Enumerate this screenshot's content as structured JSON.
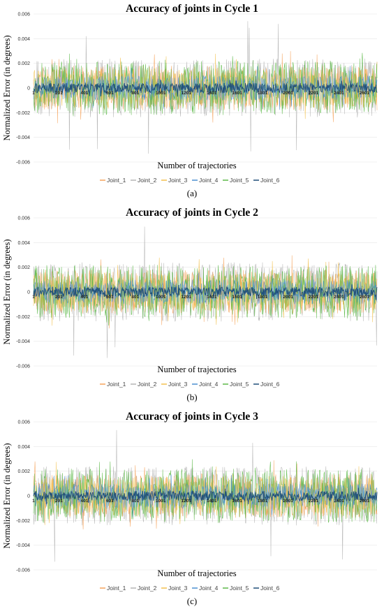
{
  "chart_data": [
    {
      "type": "line",
      "panel_label": "(a)",
      "title": "Accuracy of joints in Cycle 1",
      "xlabel": "Number of trajectories",
      "ylabel": "Normalized Error (in degrees)",
      "ylim": [
        -0.006,
        0.006
      ],
      "y_ticks": [
        "0.006",
        "0.004",
        "0.002",
        "0",
        "-0.002",
        "-0.004",
        "-0.006"
      ],
      "x_ticks": [
        "1",
        "201",
        "401",
        "601",
        "801",
        "1001",
        "1201",
        "1401",
        "1601",
        "1801",
        "2001",
        "2201",
        "2401",
        "2601"
      ],
      "x_range": [
        1,
        2700
      ],
      "series": [
        {
          "name": "Joint_1",
          "color": "#f5a35c",
          "typical_amplitude": 0.0018,
          "peak": 0.003
        },
        {
          "name": "Joint_2",
          "color": "#b4b4b4",
          "typical_amplitude": 0.0024,
          "peak": 0.0056
        },
        {
          "name": "Joint_3",
          "color": "#f2c14e",
          "typical_amplitude": 0.0016,
          "peak": 0.0028
        },
        {
          "name": "Joint_4",
          "color": "#4a8fd0",
          "typical_amplitude": 0.001,
          "peak": 0.0018
        },
        {
          "name": "Joint_5",
          "color": "#5cb848",
          "typical_amplitude": 0.0022,
          "peak": 0.003
        },
        {
          "name": "Joint_6",
          "color": "#1f4e79",
          "typical_amplitude": 0.0004,
          "peak": 0.0007
        }
      ]
    },
    {
      "type": "line",
      "panel_label": "(b)",
      "title": "Accuracy of joints in Cycle 2",
      "xlabel": "Number of trajectories",
      "ylabel": "Normalized Error (in degrees)",
      "ylim": [
        -0.006,
        0.006
      ],
      "y_ticks": [
        "0.006",
        "0.004",
        "0.002",
        "0",
        "-0.002",
        "-0.004",
        "-0.006"
      ],
      "x_ticks": [
        "1",
        "201",
        "401",
        "601",
        "801",
        "1001",
        "1201",
        "1401",
        "1601",
        "1801",
        "2001",
        "2201",
        "2401",
        "2601"
      ],
      "x_range": [
        1,
        2700
      ],
      "series": [
        {
          "name": "Joint_1",
          "color": "#f5a35c",
          "typical_amplitude": 0.0018,
          "peak": 0.003
        },
        {
          "name": "Joint_2",
          "color": "#b4b4b4",
          "typical_amplitude": 0.0024,
          "peak": 0.0057
        },
        {
          "name": "Joint_3",
          "color": "#f2c14e",
          "typical_amplitude": 0.0016,
          "peak": 0.0028
        },
        {
          "name": "Joint_4",
          "color": "#4a8fd0",
          "typical_amplitude": 0.001,
          "peak": 0.0018
        },
        {
          "name": "Joint_5",
          "color": "#5cb848",
          "typical_amplitude": 0.0022,
          "peak": 0.003
        },
        {
          "name": "Joint_6",
          "color": "#1f4e79",
          "typical_amplitude": 0.0004,
          "peak": 0.0007
        }
      ]
    },
    {
      "type": "line",
      "panel_label": "(c)",
      "title": "Accuracy of joints in Cycle 3",
      "xlabel": "Number of trajectories",
      "ylabel": "Normalized Error (in degrees)",
      "ylim": [
        -0.006,
        0.006
      ],
      "y_ticks": [
        "0.006",
        "0.004",
        "0.002",
        "0",
        "-0.002",
        "-0.004",
        "-0.006"
      ],
      "x_ticks": [
        "1",
        "201",
        "401",
        "601",
        "801",
        "1001",
        "1201",
        "1401",
        "1601",
        "1801",
        "2001",
        "2201",
        "2401",
        "2601"
      ],
      "x_range": [
        1,
        2700
      ],
      "series": [
        {
          "name": "Joint_1",
          "color": "#f5a35c",
          "typical_amplitude": 0.0018,
          "peak": 0.003
        },
        {
          "name": "Joint_2",
          "color": "#b4b4b4",
          "typical_amplitude": 0.0024,
          "peak": 0.0056
        },
        {
          "name": "Joint_3",
          "color": "#f2c14e",
          "typical_amplitude": 0.0016,
          "peak": 0.0028
        },
        {
          "name": "Joint_4",
          "color": "#4a8fd0",
          "typical_amplitude": 0.001,
          "peak": 0.0018
        },
        {
          "name": "Joint_5",
          "color": "#5cb848",
          "typical_amplitude": 0.0022,
          "peak": 0.003
        },
        {
          "name": "Joint_6",
          "color": "#1f4e79",
          "typical_amplitude": 0.0004,
          "peak": 0.0007
        }
      ]
    }
  ]
}
